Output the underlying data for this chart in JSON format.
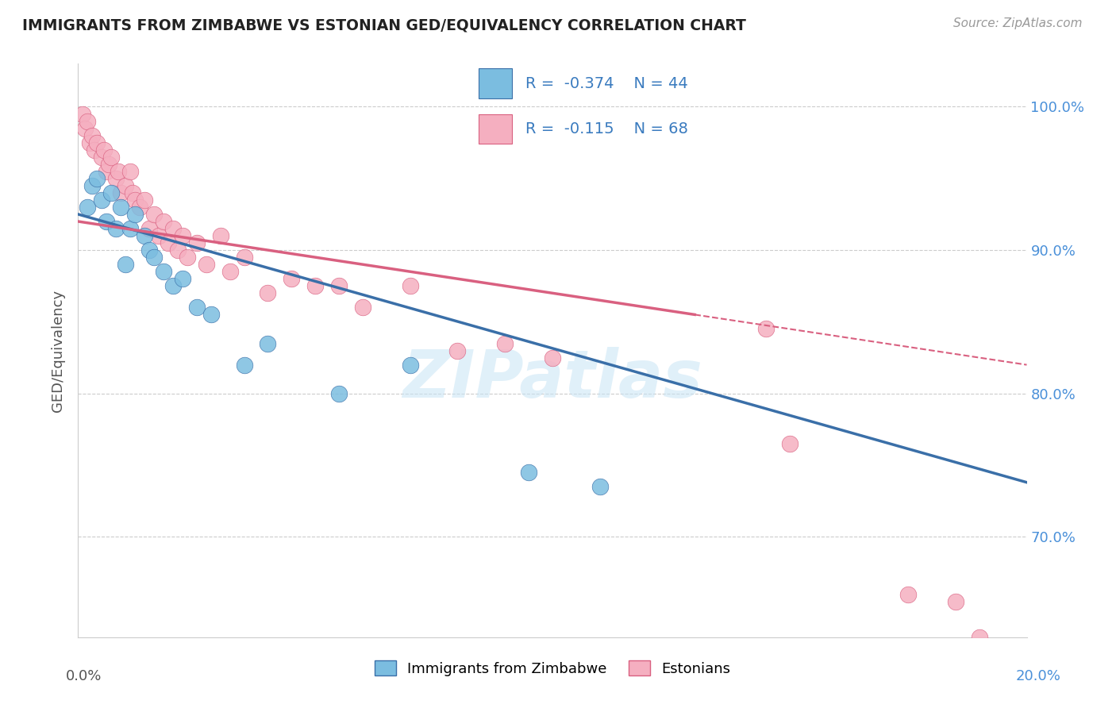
{
  "title": "IMMIGRANTS FROM ZIMBABWE VS ESTONIAN GED/EQUIVALENCY CORRELATION CHART",
  "source_text": "Source: ZipAtlas.com",
  "ylabel": "GED/Equivalency",
  "xlim": [
    0.0,
    20.0
  ],
  "ylim": [
    63.0,
    103.0
  ],
  "y_ticks": [
    70.0,
    80.0,
    90.0,
    100.0
  ],
  "y_tick_labels": [
    "70.0%",
    "80.0%",
    "90.0%",
    "100.0%"
  ],
  "color_blue": "#7bbde0",
  "color_pink": "#f5afc0",
  "color_blue_line": "#3a6fa8",
  "color_pink_line": "#d96080",
  "bg_color": "#ffffff",
  "grid_color": "#cccccc",
  "bottom_legend_label1": "Immigrants from Zimbabwe",
  "bottom_legend_label2": "Estonians",
  "zim_line_x0": 0.0,
  "zim_line_y0": 92.5,
  "zim_line_x1": 20.0,
  "zim_line_y1": 73.8,
  "est_line_solid_x0": 0.0,
  "est_line_solid_y0": 92.0,
  "est_line_solid_x1": 13.0,
  "est_line_solid_y1": 85.5,
  "est_line_dash_x0": 13.0,
  "est_line_dash_y0": 85.5,
  "est_line_dash_x1": 20.0,
  "est_line_dash_y1": 82.0,
  "zimbabwe_x": [
    0.2,
    0.3,
    0.4,
    0.5,
    0.6,
    0.7,
    0.8,
    0.9,
    1.0,
    1.1,
    1.2,
    1.4,
    1.5,
    1.6,
    1.8,
    2.0,
    2.2,
    2.5,
    2.8,
    3.5,
    4.0,
    5.5,
    7.0,
    9.5,
    11.0
  ],
  "zimbabwe_y": [
    93.0,
    94.5,
    95.0,
    93.5,
    92.0,
    94.0,
    91.5,
    93.0,
    89.0,
    91.5,
    92.5,
    91.0,
    90.0,
    89.5,
    88.5,
    87.5,
    88.0,
    86.0,
    85.5,
    82.0,
    83.5,
    80.0,
    82.0,
    74.5,
    73.5
  ],
  "estonian_x": [
    0.1,
    0.15,
    0.2,
    0.25,
    0.3,
    0.35,
    0.4,
    0.5,
    0.55,
    0.6,
    0.65,
    0.7,
    0.8,
    0.85,
    0.9,
    1.0,
    1.1,
    1.15,
    1.2,
    1.3,
    1.4,
    1.5,
    1.6,
    1.7,
    1.8,
    1.9,
    2.0,
    2.1,
    2.2,
    2.3,
    2.5,
    2.7,
    3.0,
    3.2,
    3.5,
    4.0,
    4.5,
    5.0,
    5.5,
    6.0,
    7.0,
    8.0,
    9.0,
    10.0,
    14.5,
    15.0,
    17.5,
    18.5,
    19.0
  ],
  "estonian_y": [
    99.5,
    98.5,
    99.0,
    97.5,
    98.0,
    97.0,
    97.5,
    96.5,
    97.0,
    95.5,
    96.0,
    96.5,
    95.0,
    95.5,
    94.0,
    94.5,
    95.5,
    94.0,
    93.5,
    93.0,
    93.5,
    91.5,
    92.5,
    91.0,
    92.0,
    90.5,
    91.5,
    90.0,
    91.0,
    89.5,
    90.5,
    89.0,
    91.0,
    88.5,
    89.5,
    87.0,
    88.0,
    87.5,
    87.5,
    86.0,
    87.5,
    83.0,
    83.5,
    82.5,
    84.5,
    76.5,
    66.0,
    65.5,
    63.0
  ]
}
